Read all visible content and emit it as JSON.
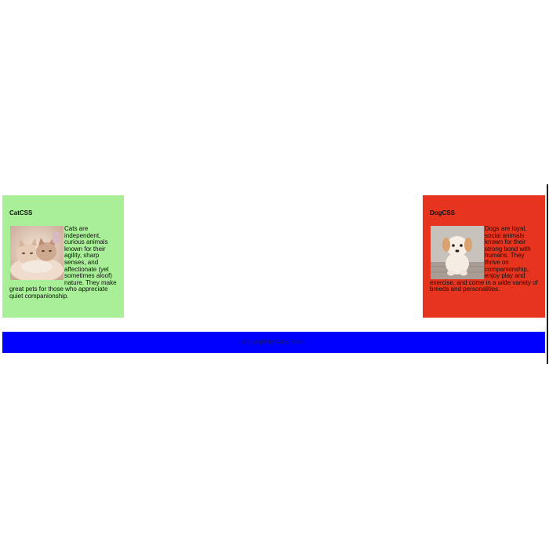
{
  "cards": [
    {
      "title": "CatCSS",
      "image_icon": "kittens-photo",
      "text": "Cats are independent, curious animals known for their agility, sharp senses, and affectionate (yet sometimes aloof) nature. They make great pets for those who appreciate quiet companionship.",
      "background": "#a8ef97"
    },
    {
      "title": "DogCSS",
      "image_icon": "puppy-photo",
      "text": "Dogs are loyal, social animals known for their strong bond with humans. They thrive on companionship, enjoy play and exercise, and come in a wide variety of breeds and personalities.",
      "background": "#e6341f"
    }
  ],
  "footer": {
    "text": "Copyright by Amey Bhole",
    "background": "#0000ff"
  }
}
